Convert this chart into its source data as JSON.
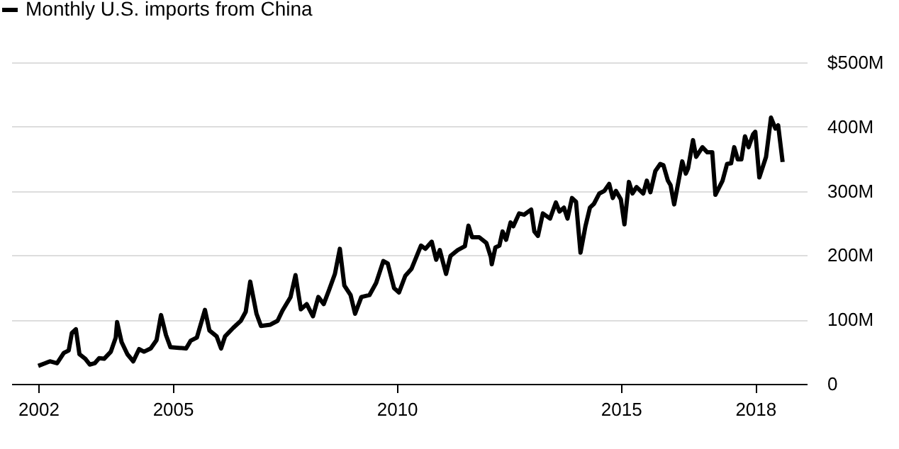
{
  "chart_data": {
    "type": "line",
    "legend": "top left",
    "grid": "y",
    "marker": "none",
    "line_style": "solid",
    "xlim": [
      2001.4,
      2019.15
    ],
    "xticks": [
      2002,
      2005,
      2010,
      2015,
      2018
    ],
    "ylim": [
      0,
      500
    ],
    "yticks": [
      0,
      {
        "value": 100,
        "label": "100M"
      },
      {
        "value": 200,
        "label": "200M"
      },
      {
        "value": 300,
        "label": "300M"
      },
      {
        "value": 400,
        "label": "400M"
      },
      {
        "value": 500,
        "label": "$500M"
      }
    ],
    "x": [
      2002.0,
      2002.15,
      2002.26,
      2002.42,
      2002.57,
      2002.68,
      2002.75,
      2002.84,
      2002.92,
      2003.05,
      2003.15,
      2003.26,
      2003.36,
      2003.47,
      2003.62,
      2003.73,
      2003.76,
      2003.86,
      2003.99,
      2004.12,
      2004.25,
      2004.36,
      2004.51,
      2004.64,
      2004.74,
      2004.85,
      2004.95,
      2005.14,
      2005.3,
      2005.4,
      2005.54,
      2005.72,
      2005.82,
      2005.98,
      2006.08,
      2006.17,
      2006.35,
      2006.52,
      2006.63,
      2006.73,
      2006.87,
      2006.97,
      2007.18,
      2007.34,
      2007.45,
      2007.63,
      2007.74,
      2007.86,
      2007.99,
      2008.13,
      2008.25,
      2008.37,
      2008.49,
      2008.62,
      2008.73,
      2008.83,
      2008.97,
      2009.07,
      2009.21,
      2009.39,
      2009.54,
      2009.7,
      2009.8,
      2009.94,
      2010.05,
      2010.19,
      2010.33,
      2010.54,
      2010.64,
      2010.78,
      2010.88,
      2010.96,
      2011.1,
      2011.2,
      2011.36,
      2011.52,
      2011.6,
      2011.68,
      2011.84,
      2012.0,
      2012.1,
      2012.12,
      2012.2,
      2012.29,
      2012.36,
      2012.44,
      2012.54,
      2012.6,
      2012.73,
      2012.84,
      2013.0,
      2013.07,
      2013.15,
      2013.26,
      2013.42,
      2013.55,
      2013.63,
      2013.73,
      2013.81,
      2013.91,
      2014.0,
      2014.1,
      2014.21,
      2014.31,
      2014.4,
      2014.52,
      2014.63,
      2014.74,
      2014.82,
      2014.89,
      2015.0,
      2015.08,
      2015.18,
      2015.26,
      2015.35,
      2015.5,
      2015.58,
      2015.66,
      2015.77,
      2015.88,
      2015.95,
      2016.05,
      2016.11,
      2016.19,
      2016.37,
      2016.45,
      2016.5,
      2016.61,
      2016.68,
      2016.82,
      2016.93,
      2017.04,
      2017.11,
      2017.27,
      2017.37,
      2017.46,
      2017.53,
      2017.61,
      2017.69,
      2017.77,
      2017.85,
      2017.95,
      2018.0,
      2018.09,
      2018.24,
      2018.3,
      2018.35,
      2018.45,
      2018.51,
      2018.61
    ],
    "series": [
      {
        "name": "Monthly U.S. imports from China",
        "color": "#000000",
        "values": [
          28,
          32,
          35,
          32,
          48,
          52,
          79,
          85,
          46,
          39,
          30,
          32,
          40,
          39,
          50,
          72,
          96,
          65,
          46,
          35,
          54,
          50,
          55,
          68,
          107,
          76,
          57,
          56,
          55,
          67,
          72,
          115,
          83,
          74,
          55,
          74,
          87,
          98,
          112,
          159,
          109,
          90,
          92,
          98,
          114,
          135,
          169,
          116,
          124,
          105,
          135,
          124,
          146,
          171,
          210,
          153,
          138,
          109,
          135,
          138,
          157,
          191,
          187,
          149,
          142,
          168,
          179,
          215,
          210,
          221,
          193,
          208,
          171,
          199,
          208,
          214,
          246,
          228,
          228,
          219,
          197,
          186,
          212,
          215,
          237,
          224,
          251,
          245,
          265,
          263,
          271,
          237,
          230,
          265,
          257,
          282,
          268,
          274,
          257,
          289,
          283,
          204,
          245,
          274,
          280,
          296,
          300,
          311,
          289,
          300,
          287,
          248,
          314,
          296,
          306,
          296,
          316,
          298,
          331,
          342,
          340,
          316,
          309,
          279,
          346,
          327,
          335,
          379,
          353,
          368,
          360,
          360,
          294,
          316,
          342,
          343,
          368,
          349,
          349,
          385,
          368,
          388,
          392,
          321,
          353,
          386,
          414,
          397,
          402,
          345
        ]
      }
    ]
  }
}
